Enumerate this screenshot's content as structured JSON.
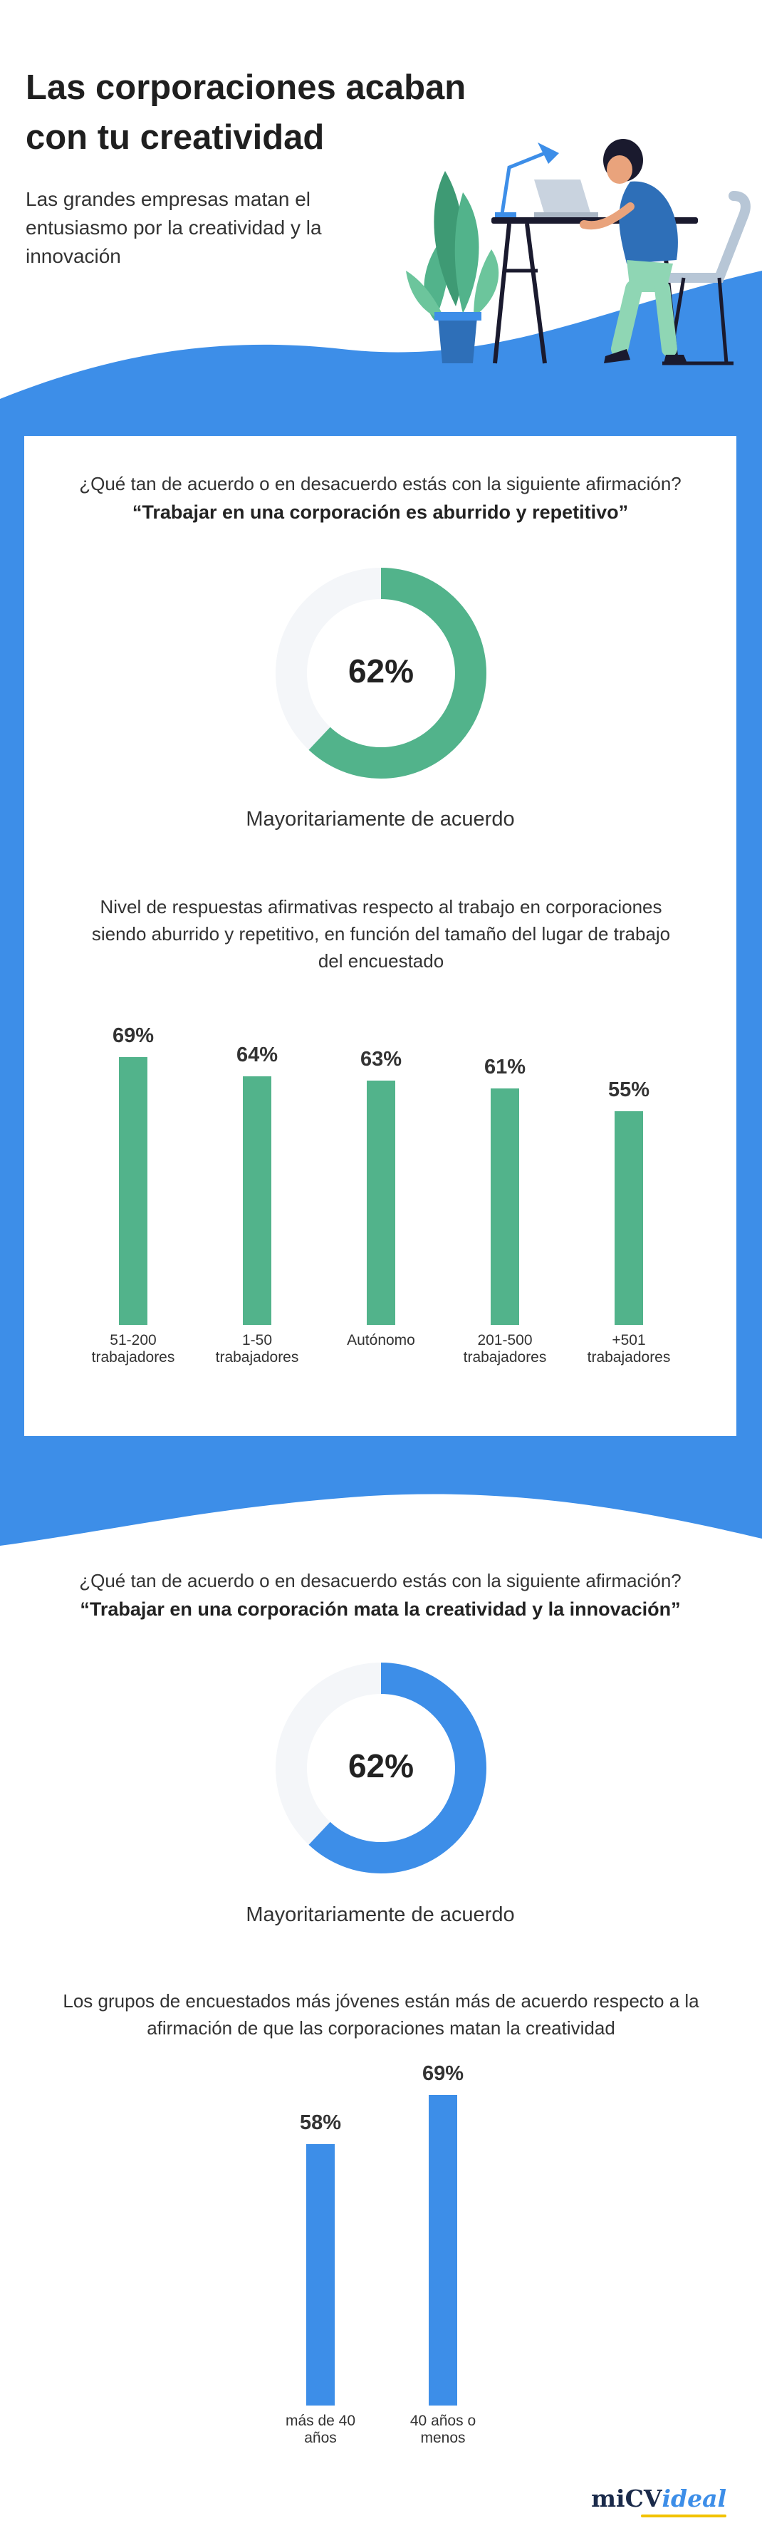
{
  "header": {
    "title": "Las corporaciones acaban con tu creatividad",
    "subtitle": "Las grandes empresas matan el entusiasmo por la creatividad y la innovación"
  },
  "section1": {
    "question": "¿Qué tan de acuerdo o en desacuerdo estás con la siguiente afirmación?",
    "statement": "“Trabajar en una corporación es aburrido y repetitivo”",
    "donut": {
      "percent_label": "62%",
      "value": 62,
      "caption": "Mayoritariamente de acuerdo",
      "color": "#52b38b",
      "track_color": "#f4f6f9"
    },
    "bars_title": "Nivel de respuestas afirmativas respecto al trabajo en corporaciones siendo aburrido y repetitivo, en función del tamaño del lugar de trabajo del encuestado"
  },
  "section2": {
    "question": "¿Qué tan de acuerdo o en desacuerdo estás con la siguiente afirmación?",
    "statement": "“Trabajar en una corporación mata la creatividad y la innovación”",
    "donut": {
      "percent_label": "62%",
      "value": 62,
      "caption": "Mayoritariamente de acuerdo",
      "color": "#3d8ee8",
      "track_color": "#f4f6f9"
    },
    "bars_title": "Los grupos de encuestados más jóvenes están más de acuerdo respecto a la afirmación de que las corporaciones matan la creatividad"
  },
  "colors": {
    "brand_blue": "#3d8ee8",
    "green": "#52b38b",
    "background": "#ffffff"
  },
  "brand": {
    "name": "miCV",
    "suffix": "ideal"
  },
  "chart_data": [
    {
      "type": "bar",
      "title": "Nivel de respuestas afirmativas respecto al trabajo en corporaciones siendo aburrido y repetitivo, en función del tamaño del lugar de trabajo del encuestado",
      "categories": [
        "51-200 trabajadores",
        "1-50 trabajadores",
        "Autónomo",
        "201-500 trabajadores",
        "+501 trabajadores"
      ],
      "category_lines": [
        [
          "51-200",
          "trabajadores"
        ],
        [
          "1-50",
          "trabajadores"
        ],
        [
          "Autónomo"
        ],
        [
          "201-500",
          "trabajadores"
        ],
        [
          "+501",
          "trabajadores"
        ]
      ],
      "values": [
        69,
        64,
        63,
        61,
        55
      ],
      "value_labels": [
        "69%",
        "64%",
        "63%",
        "61%",
        "55%"
      ],
      "unit": "%",
      "color": "#52b38b",
      "grid": false
    },
    {
      "type": "bar",
      "title": "Los grupos de encuestados más jóvenes están más de acuerdo respecto a la afirmación de que las corporaciones matan la creatividad",
      "categories": [
        "más de 40 años",
        "40 años o menos"
      ],
      "category_lines": [
        [
          "más de 40",
          "años"
        ],
        [
          "40 años o",
          "menos"
        ]
      ],
      "values": [
        58,
        69
      ],
      "value_labels": [
        "58%",
        "69%"
      ],
      "unit": "%",
      "color": "#3d8ee8",
      "grid": false
    }
  ]
}
